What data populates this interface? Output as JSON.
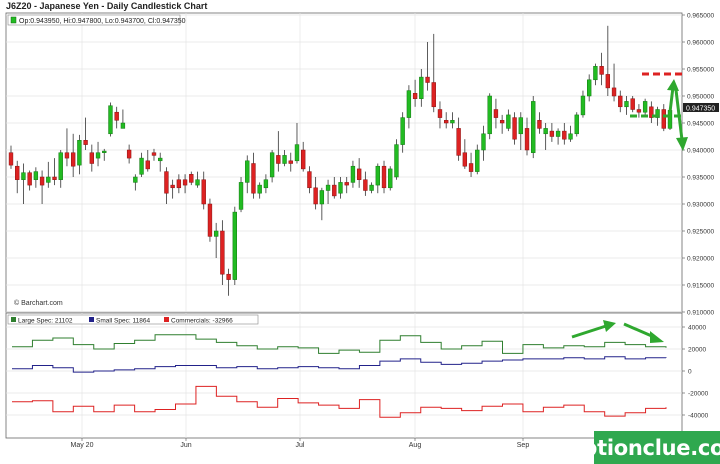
{
  "title": "J6Z20 - Japanese Yen - Daily Candlestick Chart",
  "ohlc_label": "Op:0.943950, Hi:0.947800, Lo:0.943700, Cl:0.947350",
  "last_price_label": "0.947350",
  "credit": "© Barchart.com",
  "brand": "optionclue.com",
  "colors": {
    "up": "#22bb22",
    "down": "#dd2222",
    "large": "#2f7f2f",
    "small": "#22228a",
    "commercial": "#dd2222",
    "arrow": "#2fa82f",
    "brand": "#2fa84f"
  },
  "chart_data": [
    {
      "type": "candlestick",
      "title": "J6Z20 - Japanese Yen - Daily Candlestick Chart",
      "x_tick_labels": [
        "May 20",
        "Jun",
        "Jul",
        "Aug",
        "Sep"
      ],
      "y_tick_labels": [
        "0.965000",
        "0.960000",
        "0.955000",
        "0.950000",
        "0.945000",
        "0.940000",
        "0.935000",
        "0.930000",
        "0.925000",
        "0.920000",
        "0.915000",
        "0.910000"
      ],
      "ylim": [
        0.91,
        0.965
      ],
      "grid": true,
      "candles": [
        [
          0.9395,
          0.9408,
          0.9365,
          0.9372
        ],
        [
          0.937,
          0.938,
          0.932,
          0.9345
        ],
        [
          0.9345,
          0.9375,
          0.93,
          0.9358
        ],
        [
          0.9358,
          0.9362,
          0.9325,
          0.9335
        ],
        [
          0.9345,
          0.9368,
          0.933,
          0.936
        ],
        [
          0.935,
          0.9362,
          0.93,
          0.9335
        ],
        [
          0.934,
          0.9378,
          0.933,
          0.935
        ],
        [
          0.935,
          0.9385,
          0.9335,
          0.9345
        ],
        [
          0.9345,
          0.94,
          0.933,
          0.9395
        ],
        [
          0.9395,
          0.944,
          0.937,
          0.9385
        ],
        [
          0.9395,
          0.943,
          0.935,
          0.937
        ],
        [
          0.9372,
          0.9428,
          0.9355,
          0.9418
        ],
        [
          0.9418,
          0.946,
          0.94,
          0.941
        ],
        [
          0.9395,
          0.941,
          0.936,
          0.9375
        ],
        [
          0.9385,
          0.9415,
          0.937,
          0.9395
        ],
        [
          0.9395,
          0.9402,
          0.938,
          0.9398
        ],
        [
          0.943,
          0.9488,
          0.9425,
          0.9482
        ],
        [
          0.947,
          0.948,
          0.944,
          0.9455
        ],
        [
          0.944,
          0.9475,
          0.944,
          0.945
        ],
        [
          0.94,
          0.941,
          0.9375,
          0.9385
        ],
        [
          0.934,
          0.9355,
          0.9325,
          0.935
        ],
        [
          0.9355,
          0.9395,
          0.935,
          0.9385
        ],
        [
          0.938,
          0.94,
          0.936,
          0.9365
        ],
        [
          0.9395,
          0.9402,
          0.938,
          0.939
        ],
        [
          0.938,
          0.9395,
          0.936,
          0.9385
        ],
        [
          0.936,
          0.9368,
          0.93,
          0.932
        ],
        [
          0.9335,
          0.9345,
          0.931,
          0.933
        ],
        [
          0.9345,
          0.9355,
          0.932,
          0.933
        ],
        [
          0.9345,
          0.9355,
          0.932,
          0.9335
        ],
        [
          0.9355,
          0.936,
          0.9335,
          0.934
        ],
        [
          0.9335,
          0.936,
          0.933,
          0.9345
        ],
        [
          0.9345,
          0.936,
          0.929,
          0.93
        ],
        [
          0.93,
          0.931,
          0.923,
          0.924
        ],
        [
          0.924,
          0.9265,
          0.92,
          0.925
        ],
        [
          0.925,
          0.927,
          0.915,
          0.917
        ],
        [
          0.917,
          0.918,
          0.913,
          0.916
        ],
        [
          0.916,
          0.9295,
          0.915,
          0.9285
        ],
        [
          0.929,
          0.935,
          0.9285,
          0.934
        ],
        [
          0.934,
          0.939,
          0.932,
          0.938
        ],
        [
          0.9375,
          0.9395,
          0.931,
          0.932
        ],
        [
          0.932,
          0.934,
          0.931,
          0.9335
        ],
        [
          0.933,
          0.9355,
          0.932,
          0.9345
        ],
        [
          0.935,
          0.94,
          0.934,
          0.9395
        ],
        [
          0.939,
          0.9435,
          0.936,
          0.9375
        ],
        [
          0.9375,
          0.94,
          0.937,
          0.939
        ],
        [
          0.938,
          0.9395,
          0.936,
          0.9375
        ],
        [
          0.938,
          0.945,
          0.9375,
          0.941
        ],
        [
          0.94,
          0.9415,
          0.936,
          0.9365
        ],
        [
          0.936,
          0.937,
          0.932,
          0.933
        ],
        [
          0.933,
          0.935,
          0.929,
          0.93
        ],
        [
          0.93,
          0.933,
          0.927,
          0.9325
        ],
        [
          0.9325,
          0.9345,
          0.93,
          0.9335
        ],
        [
          0.9335,
          0.935,
          0.931,
          0.9315
        ],
        [
          0.932,
          0.935,
          0.931,
          0.934
        ],
        [
          0.934,
          0.935,
          0.932,
          0.9335
        ],
        [
          0.934,
          0.938,
          0.933,
          0.937
        ],
        [
          0.9365,
          0.9385,
          0.933,
          0.9345
        ],
        [
          0.9345,
          0.936,
          0.9315,
          0.9325
        ],
        [
          0.9325,
          0.934,
          0.932,
          0.9335
        ],
        [
          0.9335,
          0.9375,
          0.932,
          0.937
        ],
        [
          0.937,
          0.938,
          0.932,
          0.933
        ],
        [
          0.933,
          0.937,
          0.9325,
          0.9365
        ],
        [
          0.935,
          0.942,
          0.9345,
          0.941
        ],
        [
          0.941,
          0.947,
          0.9395,
          0.946
        ],
        [
          0.946,
          0.952,
          0.944,
          0.951
        ],
        [
          0.9505,
          0.953,
          0.948,
          0.9495
        ],
        [
          0.9495,
          0.955,
          0.948,
          0.9535
        ],
        [
          0.9535,
          0.96,
          0.951,
          0.9525
        ],
        [
          0.9525,
          0.9615,
          0.947,
          0.948
        ],
        [
          0.9475,
          0.949,
          0.944,
          0.946
        ],
        [
          0.9455,
          0.947,
          0.944,
          0.945
        ],
        [
          0.945,
          0.947,
          0.944,
          0.9455
        ],
        [
          0.944,
          0.946,
          0.938,
          0.939
        ],
        [
          0.9395,
          0.942,
          0.9365,
          0.937
        ],
        [
          0.9375,
          0.9395,
          0.935,
          0.936
        ],
        [
          0.936,
          0.941,
          0.9355,
          0.94
        ],
        [
          0.94,
          0.9445,
          0.938,
          0.943
        ],
        [
          0.943,
          0.9505,
          0.942,
          0.95
        ],
        [
          0.9475,
          0.9495,
          0.944,
          0.946
        ],
        [
          0.9455,
          0.9465,
          0.943,
          0.945
        ],
        [
          0.944,
          0.9475,
          0.9435,
          0.9465
        ],
        [
          0.946,
          0.947,
          0.941,
          0.942
        ],
        [
          0.943,
          0.947,
          0.94,
          0.946
        ],
        [
          0.944,
          0.946,
          0.939,
          0.94
        ],
        [
          0.9395,
          0.95,
          0.9385,
          0.949
        ],
        [
          0.9455,
          0.947,
          0.943,
          0.944
        ],
        [
          0.943,
          0.945,
          0.94,
          0.944
        ],
        [
          0.9435,
          0.945,
          0.9415,
          0.9425
        ],
        [
          0.9425,
          0.944,
          0.941,
          0.9435
        ],
        [
          0.9435,
          0.945,
          0.941,
          0.942
        ],
        [
          0.942,
          0.9445,
          0.9415,
          0.943
        ],
        [
          0.943,
          0.947,
          0.9425,
          0.9465
        ],
        [
          0.9465,
          0.951,
          0.946,
          0.95
        ],
        [
          0.95,
          0.954,
          0.949,
          0.953
        ],
        [
          0.953,
          0.956,
          0.952,
          0.9555
        ],
        [
          0.9555,
          0.958,
          0.952,
          0.954
        ],
        [
          0.954,
          0.963,
          0.95,
          0.9515
        ],
        [
          0.9515,
          0.956,
          0.949,
          0.95
        ],
        [
          0.95,
          0.951,
          0.947,
          0.948
        ],
        [
          0.948,
          0.95,
          0.9465,
          0.949
        ],
        [
          0.9495,
          0.95,
          0.947,
          0.9475
        ],
        [
          0.9475,
          0.9485,
          0.946,
          0.947
        ],
        [
          0.947,
          0.9495,
          0.9465,
          0.949
        ],
        [
          0.948,
          0.949,
          0.945,
          0.946
        ],
        [
          0.946,
          0.948,
          0.9445,
          0.9475
        ],
        [
          0.9475,
          0.9485,
          0.9435,
          0.944
        ],
        [
          0.944,
          0.9478,
          0.9437,
          0.94735
        ]
      ]
    },
    {
      "type": "line",
      "title": "Commitments of Traders",
      "legend": [
        "Large Spec: 21102",
        "Small Spec: 11864",
        "Commercials: -32966"
      ],
      "y_tick_labels": [
        "40000",
        "20000",
        "0",
        "-20000",
        "-40000"
      ],
      "ylim": [
        -50000,
        45000
      ],
      "grid": true,
      "series": [
        {
          "name": "Large Spec",
          "values": [
            22000,
            28000,
            30000,
            24000,
            20000,
            25000,
            28000,
            33000,
            33000,
            29000,
            26000,
            23000,
            20000,
            22000,
            21000,
            16000,
            19000,
            17000,
            28000,
            32000,
            26000,
            20000,
            23000,
            27000,
            16000,
            24000,
            21000,
            23000,
            22000,
            26000,
            24000,
            22000,
            21102
          ]
        },
        {
          "name": "Small Spec",
          "values": [
            2000,
            5000,
            3000,
            -1000,
            0,
            1000,
            2000,
            4000,
            5000,
            5000,
            3000,
            4000,
            2000,
            3000,
            4000,
            3000,
            2000,
            5000,
            9000,
            11000,
            8000,
            6000,
            7000,
            9000,
            10000,
            11000,
            11000,
            12000,
            11000,
            13000,
            11000,
            12000,
            11864
          ]
        },
        {
          "name": "Commercials",
          "values": [
            -28000,
            -27000,
            -37000,
            -32000,
            -37000,
            -31000,
            -37000,
            -35000,
            -30000,
            -14000,
            -23000,
            -28000,
            -33000,
            -25000,
            -29000,
            -31000,
            -34000,
            -26000,
            -42000,
            -38000,
            -33000,
            -34000,
            -36000,
            -32000,
            -30000,
            -37000,
            -33000,
            -31000,
            -37000,
            -41000,
            -38000,
            -34000,
            -32966
          ]
        }
      ]
    }
  ]
}
